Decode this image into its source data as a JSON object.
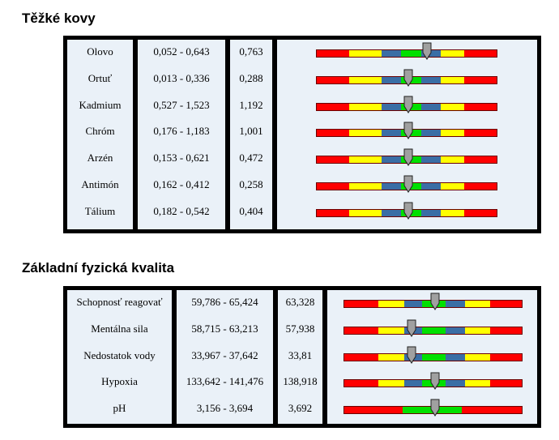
{
  "sections": [
    {
      "title": "Těžké kovy",
      "rows": [
        {
          "name": "Olovo",
          "range": "0,052 - 0,643",
          "value": "0,763",
          "level": 0.61
        },
        {
          "name": "Ortuť",
          "range": "0,013 - 0,336",
          "value": "0,288",
          "level": 0.51
        },
        {
          "name": "Kadmium",
          "range": "0,527 - 1,523",
          "value": "1,192",
          "level": 0.51
        },
        {
          "name": "Chróm",
          "range": "0,176 - 1,183",
          "value": "1,001",
          "level": 0.51
        },
        {
          "name": "Arzén",
          "range": "0,153 - 0,621",
          "value": "0,472",
          "level": 0.51
        },
        {
          "name": "Antimón",
          "range": "0,162 - 0,412",
          "value": "0,258",
          "level": 0.51
        },
        {
          "name": "Tálium",
          "range": "0,182 - 0,542",
          "value": "0,404",
          "level": 0.51
        }
      ]
    },
    {
      "title": "Základní fyzická kvalita",
      "rows": [
        {
          "name": "Schopnosť reagovať",
          "range": "59,786 - 65,424",
          "value": "63,328",
          "level": 0.51
        },
        {
          "name": "Mentálna sila",
          "range": "58,715 - 63,213",
          "value": "57,938",
          "level": 0.38
        },
        {
          "name": "Nedostatok vody",
          "range": "33,967 - 37,642",
          "value": "33,81",
          "level": 0.38
        },
        {
          "name": "Hypoxia",
          "range": "133,642 - 141,476",
          "value": "138,918",
          "level": 0.51
        },
        {
          "name": "pH",
          "range": "3,156 - 3,694",
          "value": "3,692",
          "level": 0.51
        }
      ]
    }
  ],
  "colors": {
    "red": "#ff0000",
    "yellow": "#ffff00",
    "blue": "#3a6ea5",
    "green": "#00e000",
    "marker": "#a0a0a0"
  },
  "icons": {
    "marker": "down-arrow-pointer-icon"
  }
}
